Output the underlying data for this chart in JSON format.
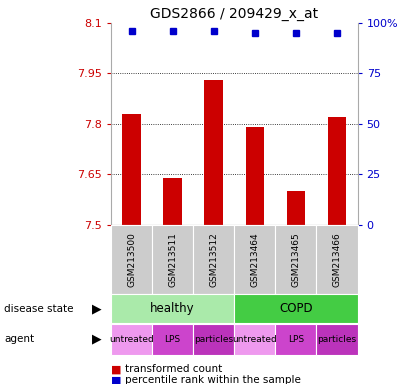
{
  "title": "GDS2866 / 209429_x_at",
  "samples": [
    "GSM213500",
    "GSM213511",
    "GSM213512",
    "GSM213464",
    "GSM213465",
    "GSM213466"
  ],
  "bar_values": [
    7.83,
    7.64,
    7.93,
    7.79,
    7.6,
    7.82
  ],
  "percentile_values": [
    96,
    96,
    96,
    95,
    95,
    95
  ],
  "ylim": [
    7.5,
    8.1
  ],
  "y_ticks": [
    7.5,
    7.65,
    7.8,
    7.95,
    8.1
  ],
  "y_tick_labels": [
    "7.5",
    "7.65",
    "7.8",
    "7.95",
    "8.1"
  ],
  "y2_ticks": [
    0,
    25,
    50,
    75,
    100
  ],
  "y2_tick_labels": [
    "0",
    "25",
    "50",
    "75",
    "100%"
  ],
  "bar_color": "#cc0000",
  "percentile_color": "#0000cc",
  "grid_color": "#000000",
  "disease_states": [
    {
      "label": "healthy",
      "span": [
        0,
        3
      ],
      "color": "#99ee99"
    },
    {
      "label": "COPD",
      "span": [
        3,
        6
      ],
      "color": "#44cc44"
    }
  ],
  "agents": [
    {
      "label": "untreated",
      "span": [
        0,
        1
      ],
      "color": "#ee99ee"
    },
    {
      "label": "LPS",
      "span": [
        1,
        2
      ],
      "color": "#cc44cc"
    },
    {
      "label": "particles",
      "span": [
        2,
        3
      ],
      "color": "#bb33bb"
    },
    {
      "label": "untreated",
      "span": [
        3,
        4
      ],
      "color": "#ee99ee"
    },
    {
      "label": "LPS",
      "span": [
        4,
        5
      ],
      "color": "#cc44cc"
    },
    {
      "label": "particles",
      "span": [
        5,
        6
      ],
      "color": "#bb33bb"
    }
  ],
  "bar_color_left_axis": "#cc0000",
  "bar_color_right_axis": "#0000cc",
  "bar_width": 0.45,
  "sample_bg_color": "#cccccc",
  "plot_bg_color": "#ffffff",
  "healthy_color": "#aaeaaa",
  "copd_color": "#44cc44",
  "untreated_color": "#ee99ee",
  "lps_color": "#cc44cc",
  "particles_color": "#bb33bb"
}
